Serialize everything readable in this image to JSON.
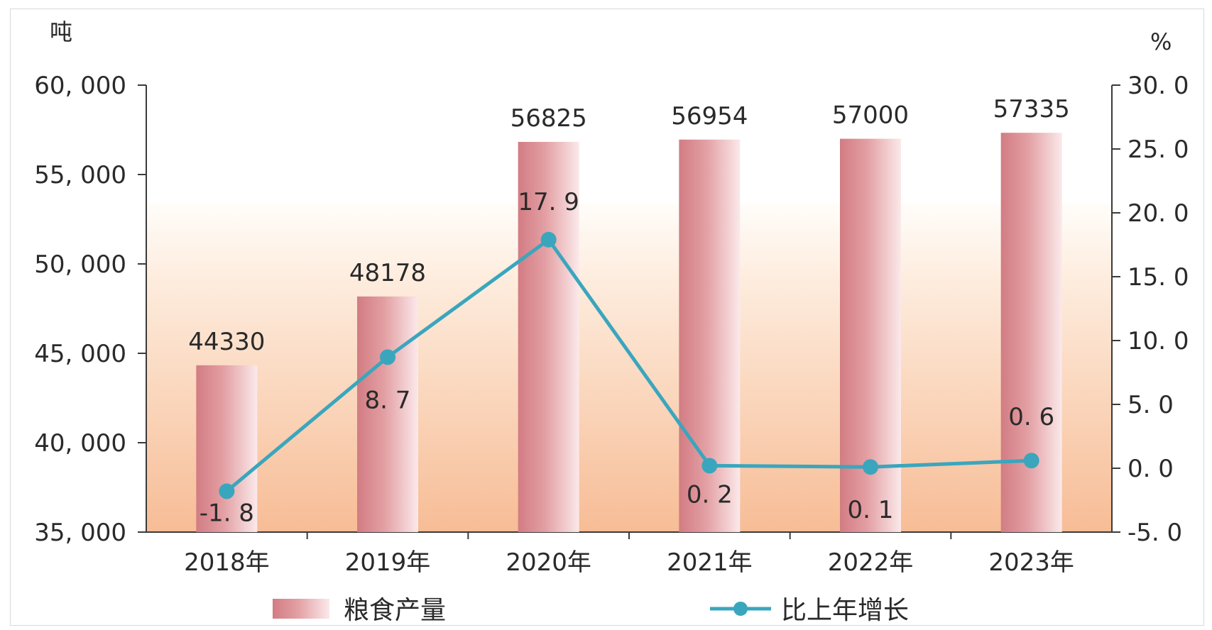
{
  "chart_data": {
    "type": "bar",
    "categories": [
      "2018年",
      "2019年",
      "2020年",
      "2021年",
      "2022年",
      "2023年"
    ],
    "left_axis": {
      "unit": "吨",
      "ylim": [
        35000,
        60000
      ],
      "ticks": [
        35000,
        40000,
        45000,
        50000,
        55000,
        60000
      ],
      "tick_labels": [
        "35, 000",
        "40, 000",
        "45, 000",
        "50, 000",
        "55, 000",
        "60, 000"
      ]
    },
    "right_axis": {
      "unit": "%",
      "ylim": [
        -5,
        30
      ],
      "ticks": [
        -5,
        0,
        5,
        10,
        15,
        20,
        25,
        30
      ],
      "tick_labels": [
        "-5. 0",
        "0. 0",
        "5. 0",
        "10. 0",
        "15. 0",
        "20. 0",
        "25. 0",
        "30. 0"
      ]
    },
    "series": [
      {
        "name": "粮食产量",
        "type": "bar",
        "axis": "left",
        "values": [
          44330,
          48178,
          56825,
          56954,
          57000,
          57335
        ],
        "labels": [
          "44330",
          "48178",
          "56825",
          "56954",
          "57000",
          "57335"
        ],
        "color": "#d9878c"
      },
      {
        "name": "比上年增长",
        "type": "line",
        "axis": "right",
        "values": [
          -1.8,
          8.7,
          17.9,
          0.2,
          0.1,
          0.6
        ],
        "labels": [
          "-1. 8",
          "8. 7",
          "17. 9",
          "0. 2",
          "0. 1",
          "0. 6"
        ],
        "color": "#3aa6bd"
      }
    ],
    "legend": {
      "position": "bottom",
      "items": [
        "粮食产量",
        "比上年增长"
      ]
    },
    "grid": false
  }
}
